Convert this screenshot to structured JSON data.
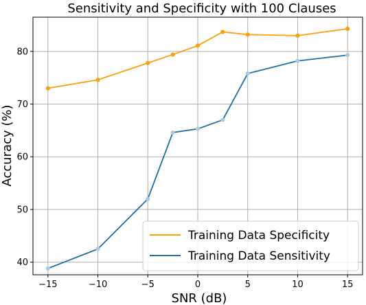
{
  "chart_data": {
    "type": "line",
    "title": "Sensitivity and Specificity with 100 Clauses",
    "xlabel": "SNR (dB)",
    "ylabel": "Accuracy (%)",
    "x": [
      -15,
      -10,
      -5,
      -2.5,
      0,
      2.5,
      5,
      10,
      15
    ],
    "xticks": [
      -15,
      -10,
      -5,
      0,
      5,
      10,
      15
    ],
    "yticks": [
      40,
      50,
      60,
      70,
      80
    ],
    "xlim": [
      -16.5,
      16.5
    ],
    "ylim": [
      37.6,
      86.5
    ],
    "grid": true,
    "legend_position": "lower-right",
    "series": [
      {
        "name": "Training Data Specificity",
        "color": "#ff9f0f",
        "marker_color": "#ff9f0f",
        "values": [
          73.0,
          74.6,
          77.8,
          79.4,
          81.1,
          83.7,
          83.2,
          83.0,
          84.3
        ]
      },
      {
        "name": "Training Data Sensitivity",
        "color": "#1f6fab",
        "marker_color": "#a9cbe6",
        "values": [
          38.8,
          42.5,
          52.0,
          64.6,
          65.3,
          67.0,
          75.8,
          78.2,
          79.3
        ]
      }
    ]
  }
}
